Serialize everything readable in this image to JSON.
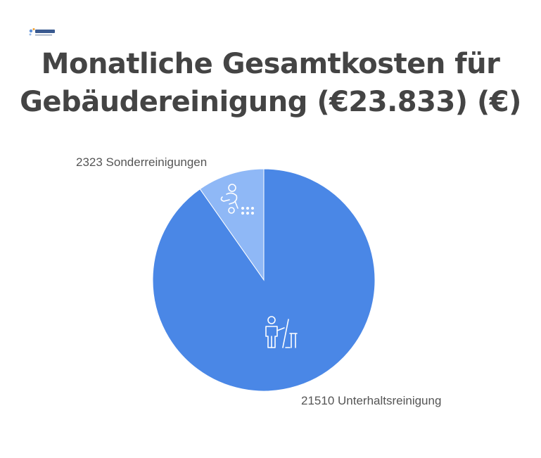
{
  "title_lines": [
    "Monatliche Gesamtkosten für",
    "Gebäudereinigung (€23.833) (€)"
  ],
  "logo_text": "Bb-Connect",
  "chart_data": {
    "type": "pie",
    "title": "Monatliche Gesamtkosten für Gebäudereinigung (€23.833) (€)",
    "total": 23833,
    "slices": [
      {
        "label": "Sonderreinigungen",
        "value": 2323,
        "display": "2323 Sonderreinigungen",
        "color": "#8fb8f6",
        "icon": "cleaner-with-vacuum-icon"
      },
      {
        "label": "Unterhaltsreinigung",
        "value": 21510,
        "display": "21510 Unterhaltsreinigung",
        "color": "#4a87e6",
        "icon": "cleaner-with-mop-icon"
      }
    ],
    "legend": "none"
  }
}
